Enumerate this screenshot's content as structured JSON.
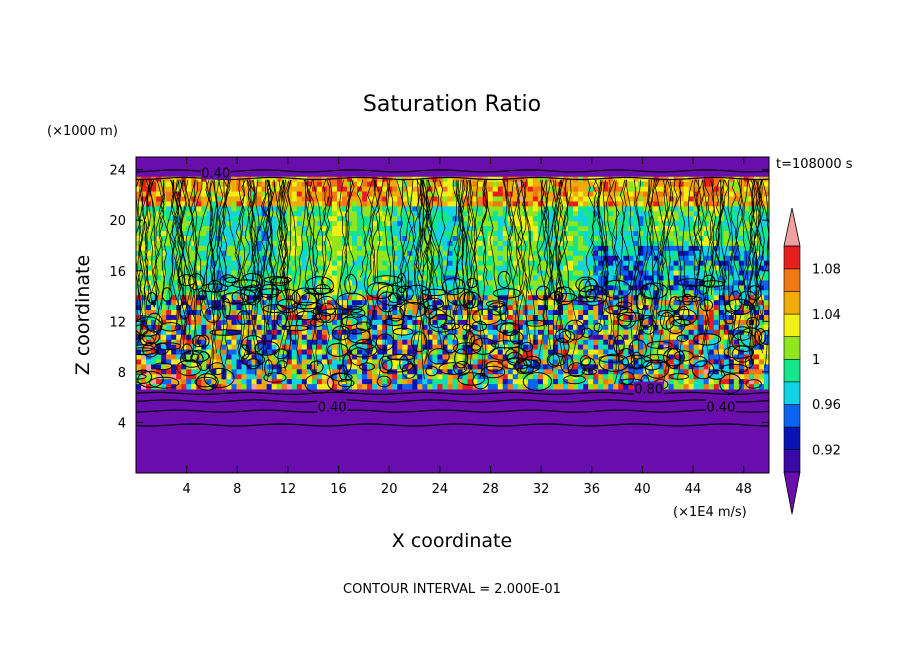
{
  "chart_data": {
    "type": "heatmap",
    "title": "Saturation Ratio",
    "xlabel": "X coordinate",
    "ylabel": "Z coordinate",
    "x_unit": "(×1E4 m/s)",
    "y_unit": "(×1000 m)",
    "time_label": "t=108000 s",
    "footer": "CONTOUR INTERVAL = 2.000E-01",
    "x_ticks": [
      4,
      8,
      12,
      16,
      20,
      24,
      28,
      32,
      36,
      40,
      44,
      48
    ],
    "y_ticks": [
      4,
      8,
      12,
      16,
      20,
      24
    ],
    "xlim": [
      0,
      50
    ],
    "ylim": [
      0,
      25
    ],
    "contour_labels": [
      {
        "text": "0.40",
        "x": 15.5,
        "y": 5.2
      },
      {
        "text": "0.40",
        "x": 46.2,
        "y": 5.2
      },
      {
        "text": "0.40",
        "x": 6.3,
        "y": 23.7
      },
      {
        "text": "0.80",
        "x": 40.5,
        "y": 6.6
      }
    ],
    "colorbar": {
      "levels": [
        0.9,
        0.92,
        0.94,
        0.96,
        0.98,
        1.0,
        1.02,
        1.04,
        1.06,
        1.08,
        1.1
      ],
      "tick_labels": [
        "0.92",
        "0.96",
        "1",
        "1.04",
        "1.08"
      ],
      "colors": [
        "#6a0dad",
        "#3a0aa8",
        "#0a14b4",
        "#0a64f0",
        "#12d2e6",
        "#14e68c",
        "#8ee61e",
        "#f0f014",
        "#f0aa0a",
        "#f07814",
        "#e61e1e",
        "#f0a0a0"
      ],
      "under_color": "#6a0dad",
      "over_color": "#f0a0a0"
    }
  }
}
